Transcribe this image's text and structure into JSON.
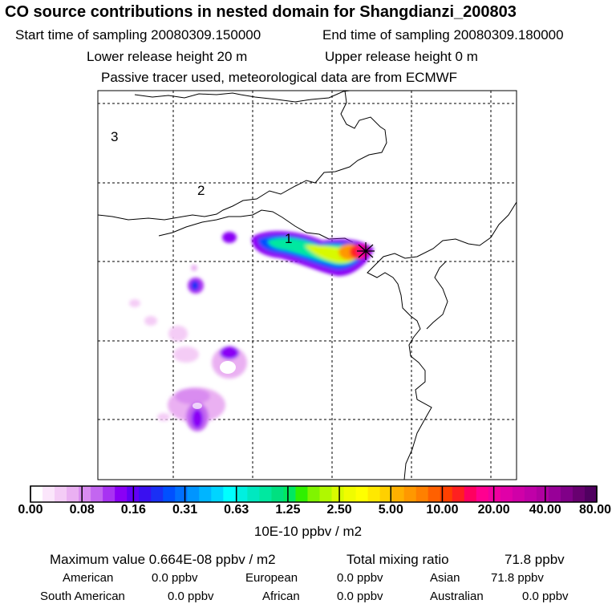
{
  "header": {
    "title": "CO  source contributions in nested domain for Shangdianzi_200803",
    "start_label": "Start time of sampling 20080309.150000",
    "end_label": "End time of sampling 20080309.180000",
    "lower_label": "Lower release height   20 m",
    "upper_label": "Upper release height    0 m",
    "note": "Passive tracer used, meteorological data are from ECMWF"
  },
  "map": {
    "region_labels": [
      "3",
      "2",
      "1"
    ],
    "receptor_marker": "star-icon"
  },
  "colorbar": {
    "labels": [
      "0.00",
      "0.08",
      "0.16",
      "0.31",
      "0.63",
      "1.25",
      "2.50",
      "5.00",
      "10.00",
      "20.00",
      "40.00",
      "80.00"
    ],
    "unit": "10E-10 ppbv / m2",
    "colors": [
      "#ffffff",
      "#fbe6fb",
      "#f4ccf6",
      "#eab0f2",
      "#d98cf0",
      "#c366f0",
      "#a833f2",
      "#8a00f5",
      "#6200f5",
      "#3a10f0",
      "#1a30f5",
      "#0050ff",
      "#0070ff",
      "#0095ff",
      "#00b5ff",
      "#00d5ff",
      "#00ffff",
      "#00f0e0",
      "#00e8c0",
      "#00e8a0",
      "#00e080",
      "#00e860",
      "#30f000",
      "#80f400",
      "#b0f800",
      "#d8fa00",
      "#f0fc00",
      "#ffff00",
      "#ffe800",
      "#ffd000",
      "#ffb000",
      "#ff9800",
      "#ff8000",
      "#ff6000",
      "#ff4000",
      "#ff2020",
      "#ff0060",
      "#ff0090",
      "#f000a0",
      "#e000a8",
      "#d000a8",
      "#c000a8",
      "#b000a0",
      "#980098",
      "#800088",
      "#680070",
      "#500060"
    ]
  },
  "summary": {
    "max_label": "Maximum value  0.664E-08 ppbv / m2",
    "total_label": "Total mixing ratio",
    "total_value": "71.8 ppbv"
  },
  "regions": [
    {
      "name": "American",
      "value": "0.0 ppbv"
    },
    {
      "name": "European",
      "value": "0.0 ppbv"
    },
    {
      "name": "Asian",
      "value": "71.8 ppbv"
    },
    {
      "name": "South American",
      "value": "0.0 ppbv"
    },
    {
      "name": "African",
      "value": "0.0 ppbv"
    },
    {
      "name": "Australian",
      "value": "0.0 ppbv"
    }
  ]
}
